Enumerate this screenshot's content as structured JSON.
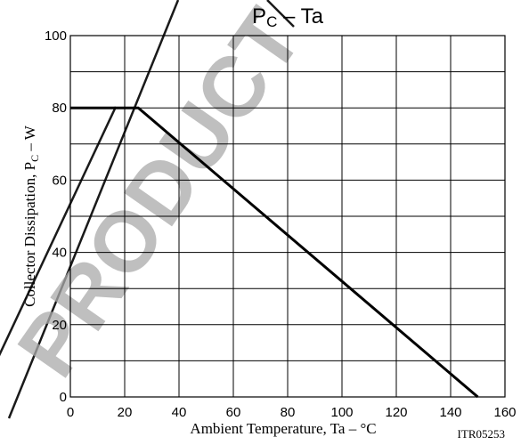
{
  "chart_data": {
    "type": "line",
    "title": "PC – Ta",
    "title_main": "P",
    "title_sub": "C",
    "title_rest": " – Ta",
    "xlabel": "Ambient Temperature, Ta  –  °C",
    "ylabel_main": "Collector Dissipation, P",
    "ylabel_sub": "C",
    "ylabel_rest": "  –  W",
    "xlim": [
      0,
      160
    ],
    "ylim": [
      0,
      100
    ],
    "x_ticks": [
      0,
      20,
      40,
      60,
      80,
      100,
      120,
      140,
      160
    ],
    "y_ticks": [
      0,
      20,
      40,
      60,
      80,
      100
    ],
    "x_tick_labels": [
      "0",
      "20",
      "40",
      "60",
      "80",
      "100",
      "120",
      "140",
      "160"
    ],
    "y_tick_labels": [
      "0",
      "20",
      "40",
      "60",
      "80",
      "100"
    ],
    "grid": true,
    "series": [
      {
        "x": [
          0,
          25,
          150
        ],
        "y": [
          80,
          80,
          0
        ]
      }
    ],
    "figure_code": "ITR05253"
  },
  "watermark_text": "PRODUCT"
}
